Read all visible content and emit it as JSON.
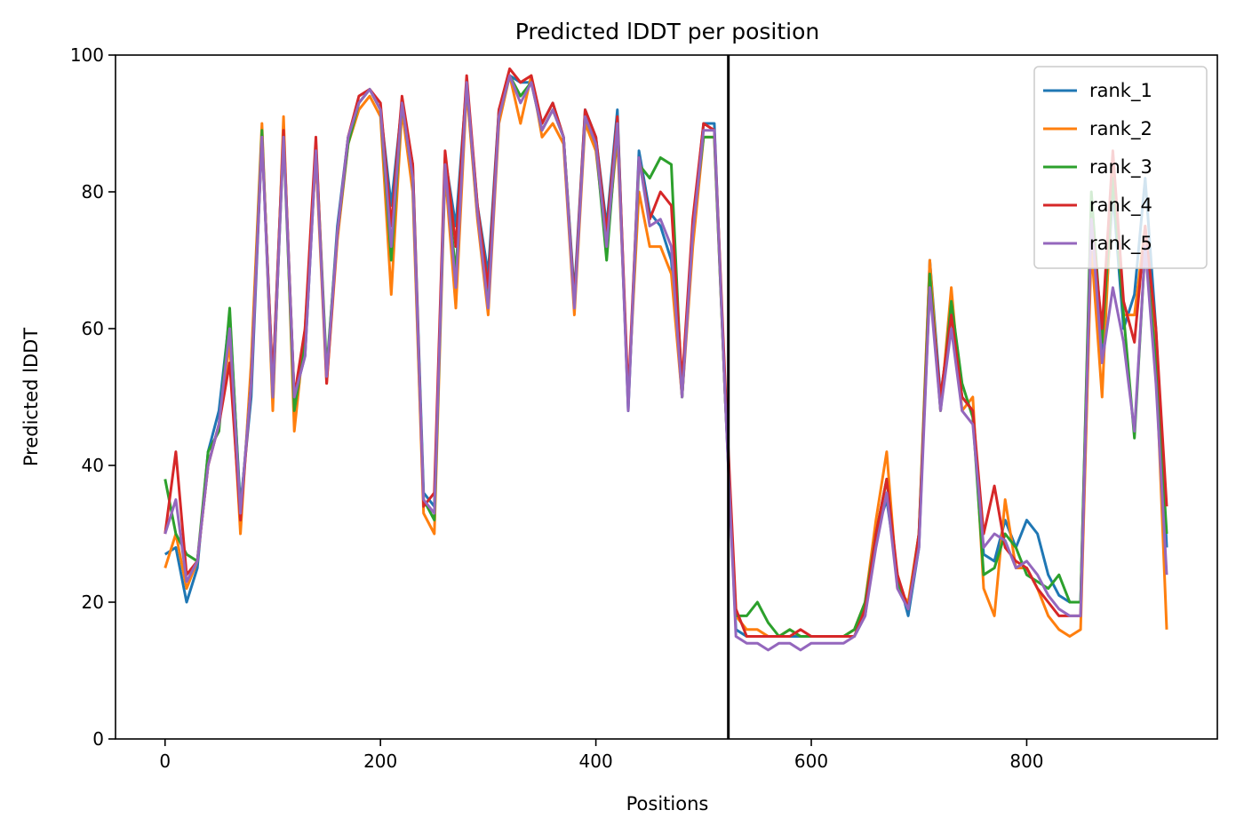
{
  "chart_data": {
    "type": "line",
    "title": "Predicted lDDT per position",
    "xlabel": "Positions",
    "ylabel": "Predicted lDDT",
    "xlim": [
      -46,
      977
    ],
    "ylim": [
      0,
      100
    ],
    "xticks": [
      0,
      200,
      400,
      600,
      800
    ],
    "yticks": [
      0,
      20,
      40,
      60,
      80,
      100
    ],
    "vline_x": 523,
    "legend_position": "upper right",
    "grid": false,
    "x": [
      0,
      10,
      20,
      30,
      40,
      50,
      60,
      70,
      80,
      90,
      100,
      110,
      120,
      130,
      140,
      150,
      160,
      170,
      180,
      190,
      200,
      210,
      220,
      230,
      240,
      250,
      260,
      270,
      280,
      290,
      300,
      310,
      320,
      330,
      340,
      350,
      360,
      370,
      380,
      390,
      400,
      410,
      420,
      430,
      440,
      450,
      460,
      470,
      480,
      490,
      500,
      510,
      520,
      530,
      540,
      550,
      560,
      570,
      580,
      590,
      600,
      610,
      620,
      630,
      640,
      650,
      660,
      670,
      680,
      690,
      700,
      710,
      720,
      730,
      740,
      750,
      760,
      770,
      780,
      790,
      800,
      810,
      820,
      830,
      840,
      850,
      860,
      870,
      880,
      890,
      900,
      910,
      920,
      930
    ],
    "series": [
      {
        "name": "rank_1",
        "color": "#1f77b4",
        "values": [
          27,
          28,
          20,
          25,
          42,
          48,
          62,
          34,
          50,
          88,
          52,
          89,
          50,
          56,
          86,
          53,
          75,
          88,
          93,
          95,
          92,
          78,
          93,
          84,
          36,
          34,
          85,
          75,
          96,
          78,
          68,
          92,
          97,
          96,
          96,
          90,
          93,
          88,
          65,
          92,
          88,
          75,
          92,
          48,
          86,
          77,
          75,
          70,
          50,
          75,
          90,
          90,
          50,
          16,
          15,
          15,
          15,
          15,
          15,
          15,
          15,
          15,
          15,
          15,
          15,
          18,
          30,
          35,
          24,
          18,
          28,
          70,
          50,
          62,
          50,
          48,
          27,
          26,
          32,
          28,
          32,
          30,
          24,
          21,
          20,
          20,
          78,
          55,
          80,
          60,
          65,
          82,
          60,
          28
        ]
      },
      {
        "name": "rank_2",
        "color": "#ff7f0e",
        "values": [
          25,
          30,
          22,
          26,
          40,
          46,
          58,
          30,
          55,
          90,
          48,
          91,
          45,
          60,
          85,
          52,
          73,
          87,
          92,
          94,
          91,
          65,
          92,
          80,
          33,
          30,
          83,
          63,
          95,
          76,
          62,
          90,
          97,
          90,
          97,
          88,
          90,
          87,
          62,
          90,
          86,
          72,
          88,
          50,
          80,
          72,
          72,
          68,
          50,
          72,
          88,
          88,
          50,
          18,
          16,
          16,
          15,
          15,
          16,
          15,
          15,
          15,
          15,
          15,
          16,
          20,
          32,
          42,
          22,
          20,
          30,
          70,
          48,
          66,
          48,
          50,
          22,
          18,
          35,
          25,
          25,
          22,
          18,
          16,
          15,
          16,
          72,
          50,
          84,
          62,
          62,
          75,
          55,
          16
        ]
      },
      {
        "name": "rank_3",
        "color": "#2ca02c",
        "values": [
          38,
          30,
          27,
          26,
          42,
          45,
          63,
          33,
          52,
          89,
          50,
          88,
          48,
          58,
          87,
          54,
          74,
          87,
          93,
          95,
          92,
          70,
          93,
          82,
          35,
          32,
          84,
          68,
          96,
          77,
          65,
          91,
          97,
          94,
          96,
          89,
          92,
          88,
          64,
          91,
          87,
          70,
          90,
          49,
          84,
          82,
          85,
          84,
          50,
          75,
          88,
          88,
          50,
          18,
          18,
          20,
          17,
          15,
          16,
          15,
          15,
          15,
          15,
          15,
          16,
          20,
          30,
          38,
          23,
          19,
          30,
          68,
          48,
          64,
          52,
          47,
          24,
          25,
          30,
          28,
          24,
          23,
          22,
          24,
          20,
          20,
          80,
          58,
          82,
          62,
          44,
          72,
          55,
          30
        ]
      },
      {
        "name": "rank_4",
        "color": "#d62728",
        "values": [
          30,
          42,
          24,
          26,
          40,
          46,
          55,
          32,
          52,
          88,
          52,
          89,
          50,
          60,
          88,
          52,
          74,
          88,
          94,
          95,
          93,
          75,
          94,
          84,
          34,
          36,
          86,
          72,
          97,
          78,
          66,
          92,
          98,
          96,
          97,
          90,
          93,
          88,
          64,
          92,
          88,
          74,
          91,
          50,
          85,
          76,
          80,
          78,
          52,
          76,
          90,
          89,
          52,
          19,
          15,
          15,
          15,
          15,
          15,
          16,
          15,
          15,
          15,
          15,
          15,
          19,
          30,
          38,
          24,
          19,
          30,
          66,
          50,
          62,
          50,
          48,
          30,
          37,
          28,
          26,
          25,
          22,
          20,
          18,
          18,
          18,
          76,
          60,
          86,
          64,
          58,
          75,
          60,
          34
        ]
      },
      {
        "name": "rank_5",
        "color": "#9467bd",
        "values": [
          30,
          35,
          23,
          26,
          40,
          46,
          60,
          33,
          52,
          88,
          50,
          88,
          50,
          56,
          86,
          53,
          74,
          88,
          93,
          95,
          92,
          72,
          93,
          82,
          35,
          33,
          84,
          66,
          96,
          77,
          63,
          91,
          97,
          93,
          96,
          89,
          92,
          88,
          63,
          91,
          87,
          72,
          90,
          48,
          85,
          75,
          76,
          72,
          50,
          74,
          89,
          89,
          50,
          15,
          14,
          14,
          13,
          14,
          14,
          13,
          14,
          14,
          14,
          14,
          15,
          18,
          28,
          36,
          22,
          19,
          28,
          66,
          48,
          60,
          48,
          46,
          28,
          30,
          29,
          25,
          26,
          24,
          21,
          19,
          18,
          18,
          76,
          55,
          66,
          58,
          45,
          72,
          52,
          24
        ]
      }
    ]
  }
}
